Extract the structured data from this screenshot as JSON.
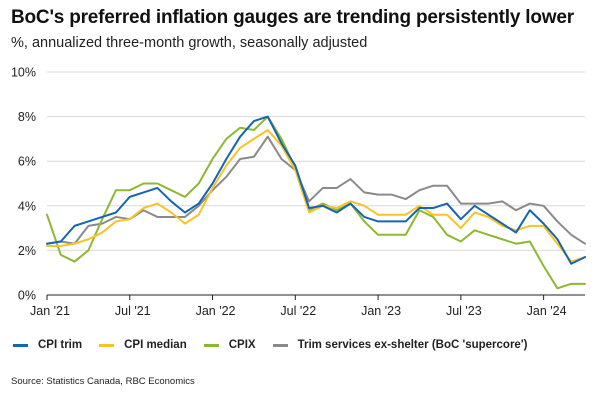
{
  "chart_data": {
    "type": "line",
    "title": "BoC's preferred inflation gauges are trending persistently lower",
    "subtitle": "%, annualized three-month growth, seasonally adjusted",
    "source": "Source: Statistics Canada, RBC Economics",
    "ylim": [
      0,
      10
    ],
    "yticks": [
      0,
      2,
      4,
      6,
      8,
      10
    ],
    "ytick_labels": [
      "0%",
      "2%",
      "4%",
      "6%",
      "8%",
      "10%"
    ],
    "x_start": "Jan '21",
    "xtick_labels": [
      "Jan '21",
      "Jul '21",
      "Jan '22",
      "Jul '22",
      "Jan '23",
      "Jul '23",
      "Jan '24"
    ],
    "xtick_index": [
      0,
      6,
      12,
      18,
      24,
      30,
      36
    ],
    "n_months": 40,
    "grid": true,
    "legend_position": "bottom",
    "series": [
      {
        "name": "CPI trim",
        "color": "#1565b0",
        "values": [
          2.3,
          2.4,
          3.1,
          3.3,
          3.5,
          3.7,
          4.4,
          4.6,
          4.8,
          4.2,
          3.7,
          4.1,
          5.0,
          6.1,
          7.1,
          7.8,
          8.0,
          6.8,
          5.8,
          3.9,
          4.0,
          3.7,
          4.1,
          3.5,
          3.3,
          3.3,
          3.3,
          3.9,
          3.9,
          4.1,
          3.4,
          4.0,
          3.6,
          3.2,
          2.8,
          3.8,
          3.2,
          2.5,
          1.4,
          1.7
        ]
      },
      {
        "name": "CPI median",
        "color": "#f7c325",
        "values": [
          2.2,
          2.2,
          2.3,
          2.5,
          2.8,
          3.3,
          3.4,
          3.9,
          4.1,
          3.7,
          3.2,
          3.6,
          4.8,
          5.8,
          6.6,
          7.0,
          7.4,
          6.7,
          5.6,
          3.7,
          4.0,
          3.9,
          4.2,
          4.0,
          3.6,
          3.6,
          3.6,
          4.0,
          3.6,
          3.6,
          3.0,
          3.7,
          3.5,
          3.1,
          2.9,
          3.1,
          3.1,
          2.3,
          1.5,
          1.7
        ]
      },
      {
        "name": "CPIX",
        "color": "#8db832",
        "values": [
          3.6,
          1.8,
          1.5,
          2.0,
          3.4,
          4.7,
          4.7,
          5.0,
          5.0,
          4.7,
          4.4,
          5.0,
          6.1,
          7.0,
          7.5,
          7.4,
          8.0,
          7.0,
          5.7,
          3.8,
          4.1,
          3.8,
          4.1,
          3.3,
          2.7,
          2.7,
          2.7,
          3.8,
          3.5,
          2.7,
          2.4,
          2.9,
          2.7,
          2.5,
          2.3,
          2.4,
          1.3,
          0.3,
          0.5,
          0.5
        ]
      },
      {
        "name": "Trim services ex-shelter (BoC 'supercore')",
        "color": "#8a8a8a",
        "values": [
          2.3,
          2.4,
          2.3,
          3.1,
          3.2,
          3.5,
          3.4,
          3.8,
          3.5,
          3.5,
          3.5,
          4.0,
          4.7,
          5.3,
          6.1,
          6.2,
          7.1,
          6.1,
          5.6,
          4.2,
          4.8,
          4.8,
          5.2,
          4.6,
          4.5,
          4.5,
          4.3,
          4.7,
          4.9,
          4.9,
          4.1,
          4.1,
          4.1,
          4.2,
          3.8,
          4.1,
          4.0,
          3.3,
          2.7,
          2.3
        ]
      }
    ]
  }
}
